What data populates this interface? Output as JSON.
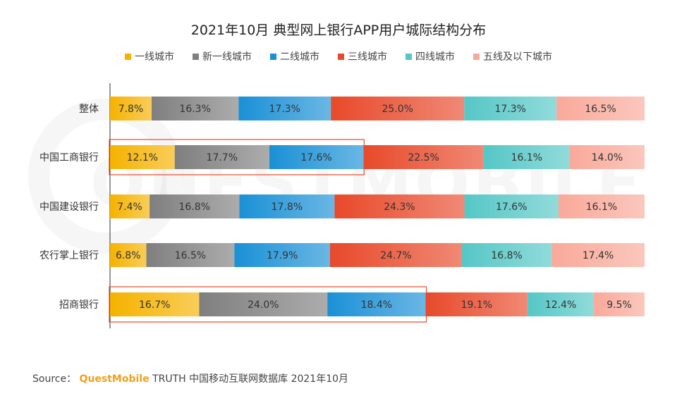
{
  "title": "2021年10月 典型网上银行APP用户城际结构分布",
  "source": {
    "prefix": "Source：",
    "brand": "QuestMobile",
    "suffix": "TRUTH 中国移动互联网数据库 2021年10月"
  },
  "watermark": "QUESTMOBILE",
  "chart_data": {
    "type": "bar",
    "orientation": "horizontal",
    "stacked": true,
    "unit": "%",
    "title": "2021年10月 典型网上银行APP用户城际结构分布",
    "legend_position": "top",
    "categories": [
      "整体",
      "中国工商银行",
      "中国建设银行",
      "农行掌上银行",
      "招商银行"
    ],
    "series": [
      {
        "name": "一线城市",
        "color": "#f5b200",
        "values": [
          7.8,
          12.1,
          7.4,
          6.8,
          16.7
        ]
      },
      {
        "name": "新一线城市",
        "color": "#7f7f7f",
        "values": [
          16.3,
          17.7,
          16.8,
          16.5,
          24.0
        ]
      },
      {
        "name": "二线城市",
        "color": "#1a90d6",
        "values": [
          17.3,
          17.6,
          17.8,
          17.9,
          18.4
        ]
      },
      {
        "name": "三线城市",
        "color": "#e8492a",
        "values": [
          25.0,
          22.5,
          24.3,
          24.7,
          19.1
        ]
      },
      {
        "name": "四线城市",
        "color": "#55c7c6",
        "values": [
          17.3,
          16.1,
          17.6,
          16.8,
          12.4
        ]
      },
      {
        "name": "五线及以下城市",
        "color": "#f9a99a",
        "values": [
          16.5,
          14.0,
          16.1,
          17.4,
          9.5
        ]
      }
    ],
    "highlighted": [
      "中国工商银行",
      "招商银行"
    ],
    "highlight_series_count": 3,
    "highlight_color": "#e8492a"
  }
}
